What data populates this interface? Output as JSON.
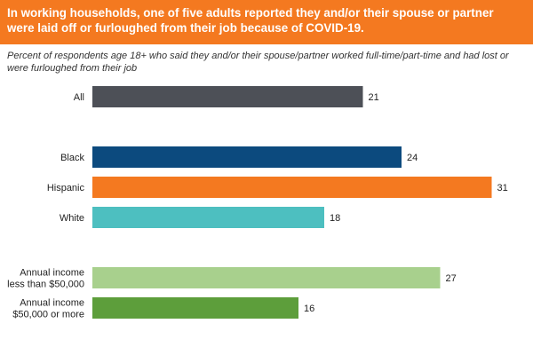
{
  "header": {
    "title": "In working households, one of five adults reported they and/or their spouse or partner\nwere laid off or furloughed from their job because of COVID-19.",
    "subtitle": "Percent of respondents age 18+ who said they and/or their spouse/partner worked full-time/part-time and had lost or\nwere furloughed from their job"
  },
  "chart_data": {
    "type": "bar",
    "orientation": "horizontal",
    "title": "In working households, one of five adults reported they and/or their spouse or partner were laid off or furloughed from their job because of COVID-19.",
    "subtitle": "Percent of respondents age 18+ who said they and/or their spouse/partner worked full-time/part-time and had lost or were furloughed from their job",
    "xlim": [
      0,
      33
    ],
    "grid": false,
    "legend": "none",
    "bars": [
      {
        "category": [
          "All"
        ],
        "value": 21,
        "label": "21",
        "color": "#4d5057",
        "group": 0
      },
      {
        "category": [
          "Black"
        ],
        "value": 24,
        "label": "24",
        "color": "#0c4a7e",
        "group": 1
      },
      {
        "category": [
          "Hispanic"
        ],
        "value": 31,
        "label": "31",
        "color": "#f47920",
        "group": 1
      },
      {
        "category": [
          "White"
        ],
        "value": 18,
        "label": "18",
        "color": "#4dbfc0",
        "group": 1
      },
      {
        "category": [
          "Annual income",
          "less than $50,000"
        ],
        "value": 27,
        "label": "27",
        "color": "#a8d08d",
        "group": 2
      },
      {
        "category": [
          "Annual income",
          "$50,000 or more"
        ],
        "value": 16,
        "label": "16",
        "color": "#5d9e3b",
        "group": 2
      }
    ]
  }
}
